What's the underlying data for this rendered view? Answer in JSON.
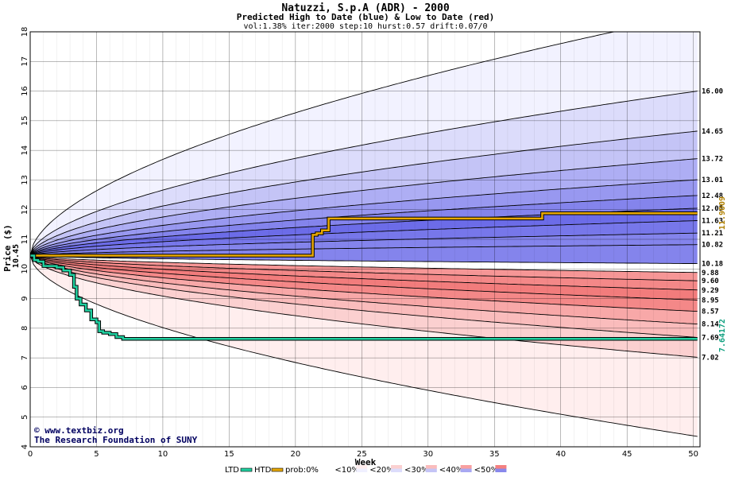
{
  "chart_data": {
    "type": "area",
    "title": "Natuzzi, S.p.A (ADR) - 2000",
    "subtitle": "Predicted High to Date (blue) &  Low to Date (red)",
    "params": "vol:1.38% iter:2000 step:10 hurst:0.57 drift:0.07/0",
    "xlabel": "Week",
    "ylabel": "Price ($)",
    "xlim": [
      0,
      50.5
    ],
    "ylim": [
      4,
      18
    ],
    "xticks": [
      0,
      5,
      10,
      15,
      20,
      25,
      30,
      35,
      40,
      45,
      50
    ],
    "yticks": [
      4,
      5,
      6,
      7,
      8,
      9,
      10,
      11,
      12,
      13,
      14,
      15,
      16,
      17,
      18
    ],
    "grid": true,
    "start_price": 10.45,
    "start_label": "10.45",
    "upper_levels": [
      16.0,
      14.65,
      13.72,
      13.01,
      12.48,
      12.05,
      11.63,
      11.21,
      10.82
    ],
    "upper_labels": [
      "16.00",
      "14.65",
      "13.72",
      "13.01",
      "12.48",
      "12.05",
      "11.63",
      "11.21",
      "10.82"
    ],
    "mid_level": 10.18,
    "mid_label": "10.18",
    "lower_levels": [
      9.88,
      9.6,
      9.29,
      8.95,
      8.57,
      8.14,
      7.69,
      7.02
    ],
    "lower_labels": [
      "9.88",
      "9.60",
      "9.29",
      "8.95",
      "8.57",
      "8.14",
      "7.69",
      "7.02"
    ],
    "outer_upper_end": 18.6,
    "outer_lower_end": 4.35,
    "band_colors_upper": [
      "#f2f2ff",
      "#dcdcfb",
      "#c4c4f6",
      "#aeaef4",
      "#9898f0",
      "#8484ec",
      "#7777ea",
      "#6c6ce8"
    ],
    "band_colors_lower": [
      "#ffeeee",
      "#fbd0d0",
      "#fabcbc",
      "#f8a8a8",
      "#f69696",
      "#f48888",
      "#f27c7c"
    ],
    "series": [
      {
        "name": "HTD",
        "color": "#e8a800",
        "x": [
          0,
          3,
          6,
          10,
          15,
          20,
          21,
          21.3,
          21.6,
          22,
          22.5,
          24,
          30,
          35,
          38.3,
          38.6,
          40,
          45,
          50.3
        ],
        "y": [
          10.45,
          10.45,
          10.45,
          10.45,
          10.45,
          10.45,
          10.45,
          11.15,
          11.2,
          11.3,
          11.7,
          11.7,
          11.7,
          11.7,
          11.7,
          11.88,
          11.88,
          11.88,
          11.88
        ]
      },
      {
        "name": "LTD",
        "color": "#20d0a0",
        "x": [
          0,
          0.3,
          0.6,
          1,
          1.5,
          2,
          2.5,
          3,
          3.3,
          3.5,
          3.8,
          4.2,
          4.6,
          5,
          5.2,
          5.5,
          6,
          6.5,
          7,
          10,
          20,
          30,
          40,
          50.3
        ],
        "y": [
          10.45,
          10.3,
          10.25,
          10.1,
          10.1,
          10.05,
          9.95,
          9.8,
          9.4,
          9.0,
          8.8,
          8.6,
          8.3,
          8.2,
          7.9,
          7.85,
          7.8,
          7.7,
          7.64,
          7.64,
          7.64,
          7.64,
          7.64,
          7.64
        ]
      }
    ],
    "htd_end_label": "11.9009",
    "ltd_end_label": "7.64172",
    "legend": {
      "position": "bottom-center",
      "items": [
        "LTD",
        "HTD",
        "prob:0%",
        "<10%",
        "<20%",
        "<30%",
        "<40%",
        "<50%"
      ]
    },
    "watermark_line1": "www.textbiz.org",
    "watermark_line2": "The Research Foundation of SUNY"
  }
}
